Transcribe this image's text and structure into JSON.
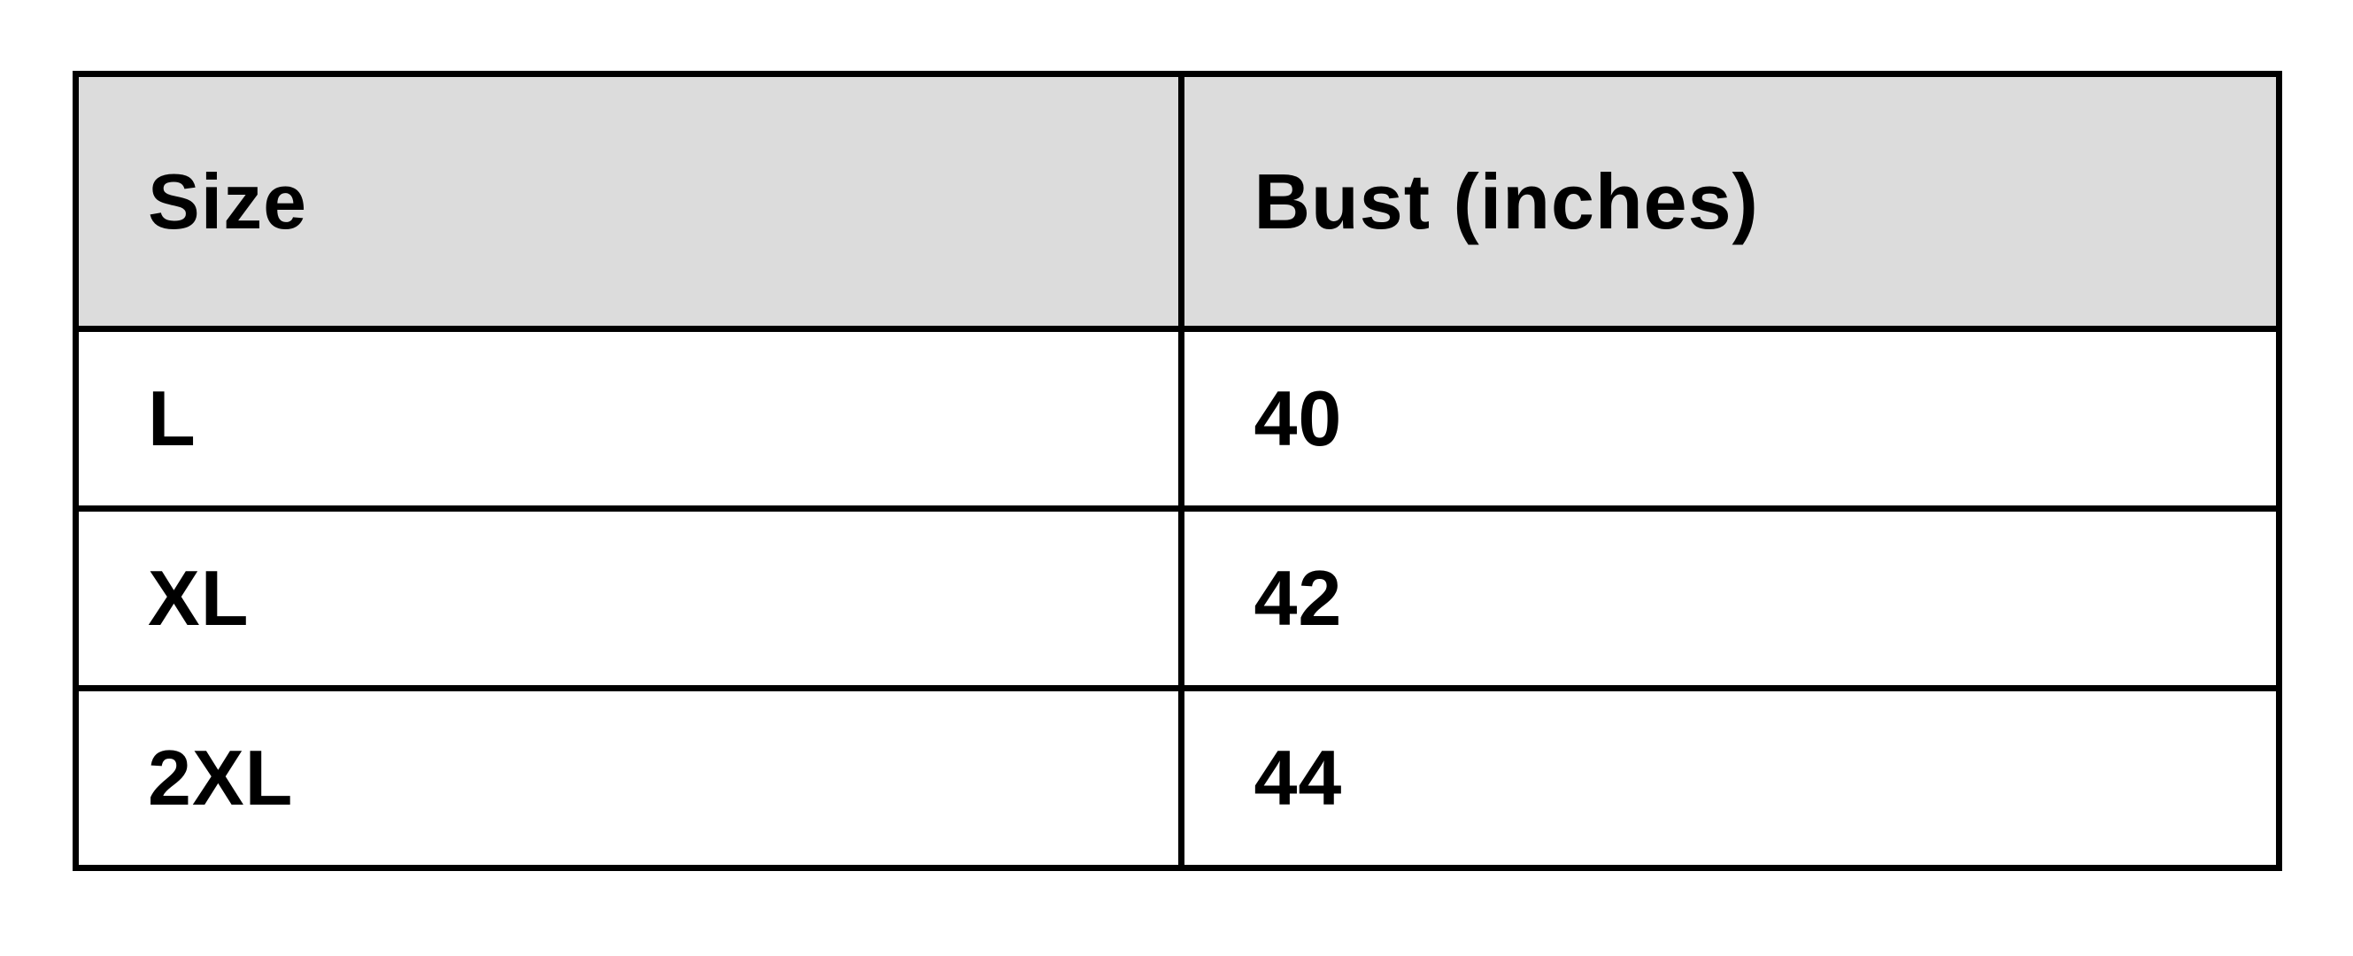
{
  "chart_data": {
    "type": "table",
    "columns": [
      "Size",
      "Bust (inches)"
    ],
    "rows": [
      [
        "L",
        "40"
      ],
      [
        "XL",
        "42"
      ],
      [
        "2XL",
        "44"
      ]
    ],
    "layout": {
      "header_background": "#dcdcdc",
      "border_color": "#000000",
      "page_background": "#ffffff",
      "text_color": "#000000",
      "text_align": "left",
      "grid": "full-borders"
    }
  }
}
